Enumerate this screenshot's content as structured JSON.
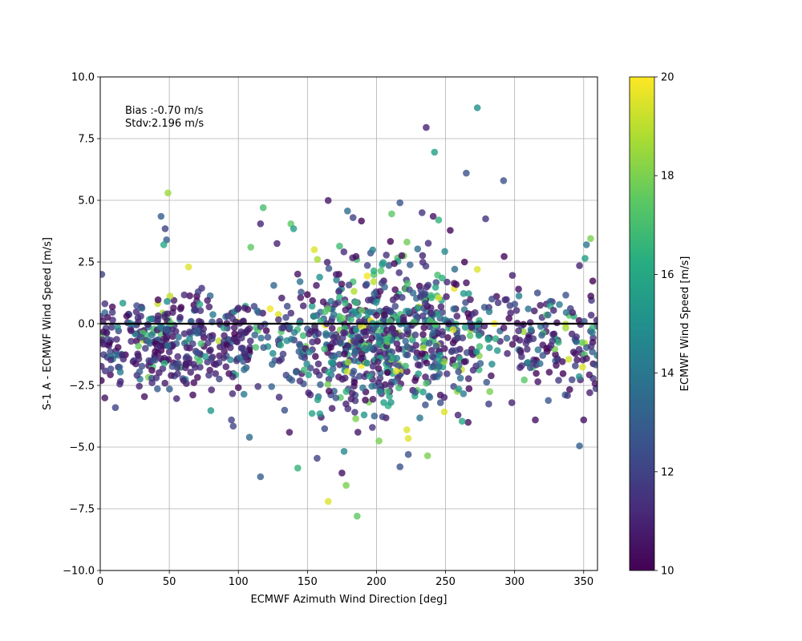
{
  "chart_data": {
    "type": "scatter",
    "title": "",
    "xlabel": "ECMWF Azimuth Wind Direction [deg]",
    "ylabel": "S-1 A - ECMWF Wind Speed [m/s]",
    "xlim": [
      0,
      360
    ],
    "ylim": [
      -10,
      10
    ],
    "xticks": [
      0,
      50,
      100,
      150,
      200,
      250,
      300,
      350
    ],
    "xtick_labels": [
      "0",
      "50",
      "100",
      "150",
      "200",
      "250",
      "300",
      "350"
    ],
    "yticks": [
      -10,
      -7.5,
      -5,
      -2.5,
      0,
      2.5,
      5,
      7.5,
      10
    ],
    "ytick_labels": [
      "−10.0",
      "−7.5",
      "−5.0",
      "−2.5",
      "0.0",
      "2.5",
      "5.0",
      "7.5",
      "10.0"
    ],
    "grid": true,
    "zero_line": 0,
    "annotations": [
      "Bias :-0.70 m/s",
      "Stdv:2.196 m/s"
    ],
    "colorbar": {
      "label": "ECMWF Wind Speed [m/s]",
      "colormap": "viridis",
      "range": [
        10,
        20
      ],
      "ticks": [
        10,
        12,
        14,
        16,
        18,
        20
      ],
      "tick_labels": [
        "10",
        "12",
        "14",
        "16",
        "18",
        "20"
      ]
    },
    "point_count_approx": 1500,
    "bias": -0.7,
    "stdv": 2.196,
    "notable_points": [
      {
        "x": 273,
        "y": 8.75,
        "c": 15.0
      },
      {
        "x": 236,
        "y": 7.95,
        "c": 11.0
      },
      {
        "x": 242,
        "y": 6.95,
        "c": 15.5
      },
      {
        "x": 265,
        "y": 6.1,
        "c": 12.5
      },
      {
        "x": 292,
        "y": 5.8,
        "c": 12.5
      },
      {
        "x": 49,
        "y": 5.3,
        "c": 18.5
      },
      {
        "x": 44,
        "y": 4.35,
        "c": 13.0
      },
      {
        "x": 47,
        "y": 3.85,
        "c": 12.0
      },
      {
        "x": 48,
        "y": 3.4,
        "c": 13.0
      },
      {
        "x": 46,
        "y": 3.2,
        "c": 16.0
      },
      {
        "x": 118,
        "y": 4.7,
        "c": 17.0
      },
      {
        "x": 116,
        "y": 4.05,
        "c": 11.0
      },
      {
        "x": 138,
        "y": 4.05,
        "c": 17.5
      },
      {
        "x": 140,
        "y": 3.85,
        "c": 15.5
      },
      {
        "x": 183,
        "y": 4.3,
        "c": 12.0
      },
      {
        "x": 211,
        "y": 4.45,
        "c": 17.5
      },
      {
        "x": 217,
        "y": 4.9,
        "c": 12.5
      },
      {
        "x": 233,
        "y": 4.5,
        "c": 11.5
      },
      {
        "x": 241,
        "y": 4.35,
        "c": 10.5
      },
      {
        "x": 245,
        "y": 4.2,
        "c": 16.5
      },
      {
        "x": 279,
        "y": 4.25,
        "c": 11.5
      },
      {
        "x": 347,
        "y": 2.35,
        "c": 11.0
      },
      {
        "x": 352,
        "y": 3.2,
        "c": 14.0
      },
      {
        "x": 355,
        "y": 3.45,
        "c": 18.0
      },
      {
        "x": 351,
        "y": 2.65,
        "c": 15.5
      },
      {
        "x": 64,
        "y": 2.3,
        "c": 19.5
      },
      {
        "x": 155,
        "y": 3.0,
        "c": 19.5
      },
      {
        "x": 109,
        "y": 3.1,
        "c": 17.5
      },
      {
        "x": 128,
        "y": 3.25,
        "c": 11.0
      },
      {
        "x": 273,
        "y": 2.2,
        "c": 19.5
      },
      {
        "x": 116,
        "y": -6.2,
        "c": 13.0
      },
      {
        "x": 108,
        "y": -4.6,
        "c": 13.5
      },
      {
        "x": 143,
        "y": -5.85,
        "c": 16.5
      },
      {
        "x": 157,
        "y": -5.45,
        "c": 12.0
      },
      {
        "x": 165,
        "y": -7.2,
        "c": 19.5
      },
      {
        "x": 178,
        "y": -6.55,
        "c": 18.0
      },
      {
        "x": 175,
        "y": -6.05,
        "c": 10.5
      },
      {
        "x": 186,
        "y": -7.8,
        "c": 17.5
      },
      {
        "x": 217,
        "y": -5.8,
        "c": 12.5
      },
      {
        "x": 223,
        "y": -5.3,
        "c": 12.5
      },
      {
        "x": 237,
        "y": -5.35,
        "c": 18.0
      },
      {
        "x": 223,
        "y": -4.65,
        "c": 19.5
      },
      {
        "x": 222,
        "y": -4.3,
        "c": 19.5
      },
      {
        "x": 347,
        "y": -4.95,
        "c": 13.0
      },
      {
        "x": 350,
        "y": -3.9,
        "c": 10.5
      },
      {
        "x": 315,
        "y": -3.9,
        "c": 10.5
      },
      {
        "x": 298,
        "y": -3.2,
        "c": 11.0
      },
      {
        "x": 11,
        "y": -3.4,
        "c": 12.0
      },
      {
        "x": 32,
        "y": -2.95,
        "c": 10.5
      },
      {
        "x": 95,
        "y": -3.9,
        "c": 12.0
      },
      {
        "x": 137,
        "y": -4.4,
        "c": 10.5
      },
      {
        "x": 159,
        "y": -3.65,
        "c": 15.5
      },
      {
        "x": 185,
        "y": -3.85,
        "c": 18.0
      },
      {
        "x": 197,
        "y": -4.2,
        "c": 11.5
      },
      {
        "x": 259,
        "y": -3.7,
        "c": 11.0
      },
      {
        "x": 262,
        "y": -3.95,
        "c": 16.0
      },
      {
        "x": 282,
        "y": -2.75,
        "c": 18.0
      },
      {
        "x": 189,
        "y": -0.1,
        "c": 19.5
      },
      {
        "x": 198,
        "y": 1.7,
        "c": 19.0
      },
      {
        "x": 245,
        "y": 1.05,
        "c": 19.5
      }
    ]
  }
}
